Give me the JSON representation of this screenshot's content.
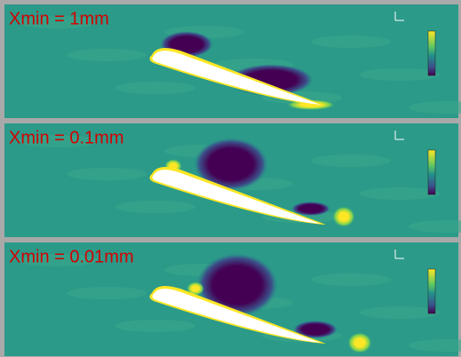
{
  "panels": [
    {
      "label": "Xmin = 1mm"
    },
    {
      "label": "Xmin = 0.1mm"
    },
    {
      "label": "Xmin = 0.01mm"
    }
  ]
}
